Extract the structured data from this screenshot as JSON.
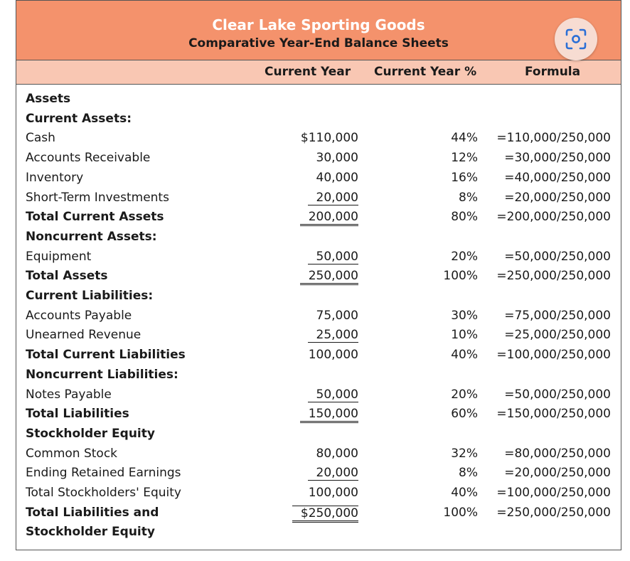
{
  "header": {
    "company": "Clear Lake Sporting Goods",
    "subtitle": "Comparative Year-End Balance Sheets"
  },
  "columns": {
    "current_year": "Current Year",
    "current_year_pct": "Current Year %",
    "formula": "Formula"
  },
  "rows": [
    {
      "label": "Assets",
      "bold": true,
      "amount": "",
      "pct": "",
      "formula": ""
    },
    {
      "label": "Current Assets:",
      "bold": true,
      "amount": "",
      "pct": "",
      "formula": ""
    },
    {
      "label": "Cash",
      "bold": false,
      "amount": "$110,000",
      "pct": "44%",
      "formula": "=110,000/250,000"
    },
    {
      "label": "Accounts Receivable",
      "bold": false,
      "amount": "30,000",
      "pct": "12%",
      "formula": "=30,000/250,000"
    },
    {
      "label": "Inventory",
      "bold": false,
      "amount": "40,000",
      "pct": "16%",
      "formula": "=40,000/250,000"
    },
    {
      "label": "Short-Term Investments",
      "bold": false,
      "amount": "20,000",
      "pct": "8%",
      "formula": "=20,000/250,000",
      "rule": "single"
    },
    {
      "label": "Total Current Assets",
      "bold": true,
      "amount": "200,000",
      "pct": "80%",
      "formula": "=200,000/250,000",
      "rule": "double"
    },
    {
      "label": "Noncurrent Assets:",
      "bold": true,
      "amount": "",
      "pct": "",
      "formula": ""
    },
    {
      "label": "Equipment",
      "bold": false,
      "amount": "50,000",
      "pct": "20%",
      "formula": "=50,000/250,000",
      "rule": "single"
    },
    {
      "label": "Total Assets",
      "bold": true,
      "amount": "250,000",
      "pct": "100%",
      "formula": "=250,000/250,000",
      "rule": "double"
    },
    {
      "label": "Current Liabilities:",
      "bold": true,
      "amount": "",
      "pct": "",
      "formula": ""
    },
    {
      "label": "Accounts Payable",
      "bold": false,
      "amount": "75,000",
      "pct": "30%",
      "formula": "=75,000/250,000"
    },
    {
      "label": "Unearned Revenue",
      "bold": false,
      "amount": "25,000",
      "pct": "10%",
      "formula": "=25,000/250,000",
      "rule": "single"
    },
    {
      "label": "Total Current Liabilities",
      "bold": true,
      "amount": "100,000",
      "pct": "40%",
      "formula": "=100,000/250,000"
    },
    {
      "label": "Noncurrent Liabilities:",
      "bold": true,
      "amount": "",
      "pct": "",
      "formula": ""
    },
    {
      "label": "Notes Payable",
      "bold": false,
      "amount": "50,000",
      "pct": "20%",
      "formula": "=50,000/250,000",
      "rule": "single"
    },
    {
      "label": "Total Liabilities",
      "bold": true,
      "amount": "150,000",
      "pct": "60%",
      "formula": "=150,000/250,000",
      "rule": "double"
    },
    {
      "label": "Stockholder Equity",
      "bold": true,
      "amount": "",
      "pct": "",
      "formula": ""
    },
    {
      "label": "Common Stock",
      "bold": false,
      "amount": "80,000",
      "pct": "32%",
      "formula": "=80,000/250,000"
    },
    {
      "label": "Ending Retained Earnings",
      "bold": false,
      "amount": "20,000",
      "pct": "8%",
      "formula": "=20,000/250,000",
      "rule": "single"
    },
    {
      "label": "Total Stockholders' Equity",
      "bold": false,
      "amount": "100,000",
      "pct": "40%",
      "formula": "=100,000/250,000"
    },
    {
      "label": "Total Liabilities and",
      "bold": true,
      "amount": "$250,000",
      "pct": "100%",
      "formula": "=250,000/250,000",
      "rule": "over-double"
    },
    {
      "label": "Stockholder Equity",
      "bold": true,
      "amount": "",
      "pct": "",
      "formula": ""
    }
  ],
  "icons": {
    "scan": "scan-image-icon"
  },
  "colors": {
    "title_bg": "#f4926c",
    "header_bg": "#f9c7b3",
    "scan_accent": "#2b6fd6"
  }
}
